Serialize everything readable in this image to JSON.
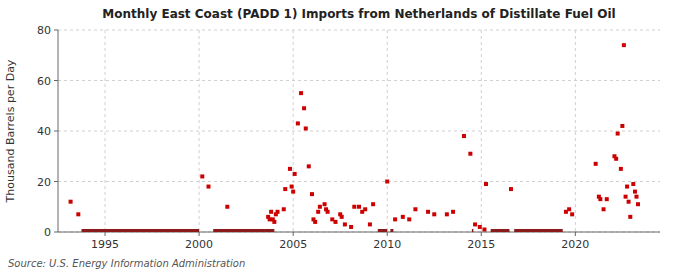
{
  "chart_data": {
    "type": "scatter",
    "title": "Monthly East Coast (PADD 1) Imports from Netherlands of Distillate Fuel Oil",
    "y_label": "Thousand Barrels per Day",
    "source": "Source: U.S. Energy Information Administration",
    "xlim": [
      1992.5,
      2024.5
    ],
    "xticks": [
      1995,
      2000,
      2005,
      2010,
      2015,
      2020
    ],
    "ylim": [
      0,
      80
    ],
    "yticks": [
      0,
      20,
      40,
      60,
      80
    ],
    "grid": true,
    "series": [
      {
        "type": "scatter",
        "color": "#cc0000",
        "marker": "square",
        "x": [
          1993.17,
          1993.58,
          2000.17,
          2000.5,
          2001.5,
          2003.67,
          2003.75,
          2003.83,
          2003.92,
          2004.0,
          2004.08,
          2004.17,
          2004.5,
          2004.58,
          2004.83,
          2004.92,
          2005.0,
          2005.08,
          2005.25,
          2005.42,
          2005.58,
          2005.67,
          2005.83,
          2006.0,
          2006.08,
          2006.17,
          2006.33,
          2006.42,
          2006.67,
          2006.75,
          2006.83,
          2007.08,
          2007.25,
          2007.5,
          2007.58,
          2007.75,
          2008.08,
          2008.25,
          2008.5,
          2008.67,
          2008.83,
          2009.08,
          2009.25,
          2010.0,
          2010.42,
          2010.83,
          2011.17,
          2011.5,
          2012.17,
          2012.5,
          2013.17,
          2013.5,
          2014.08,
          2014.42,
          2014.67,
          2014.92,
          2015.17,
          2015.25,
          2016.58,
          2019.5,
          2019.67,
          2019.83,
          2021.08,
          2021.25,
          2021.33,
          2021.5,
          2021.67,
          2022.08,
          2022.17,
          2022.25,
          2022.42,
          2022.5,
          2022.58,
          2022.67,
          2022.75,
          2022.83,
          2022.92,
          2023.08,
          2023.17,
          2023.25,
          2023.33
        ],
        "values": [
          12,
          7,
          22,
          18,
          10,
          6,
          5,
          8,
          5,
          4,
          7,
          8,
          9,
          17,
          25,
          18,
          16,
          23,
          43,
          55,
          49,
          41,
          26,
          15,
          5,
          4,
          8,
          10,
          11,
          9,
          8,
          5,
          4,
          7,
          6,
          3,
          2,
          10,
          10,
          8,
          9,
          3,
          11,
          20,
          5,
          6,
          5,
          9,
          8,
          7,
          7,
          8,
          38,
          31,
          3,
          2,
          1,
          19,
          17,
          8,
          9,
          7,
          27,
          14,
          13,
          9,
          13,
          30,
          29,
          39,
          25,
          42,
          74,
          14,
          18,
          12,
          6,
          19,
          16,
          14,
          11
        ]
      },
      {
        "type": "segment",
        "color": "#8b1a1a",
        "x_start": [
          1993.75,
          2000.75,
          2003.5,
          2009.5,
          2010.17,
          2014.5,
          2015.5,
          2016.75
        ],
        "x_end": [
          2000.0,
          2003.5,
          2004.0,
          2010.0,
          2010.33,
          2014.58,
          2016.5,
          2019.33
        ],
        "values": [
          0,
          0,
          0,
          0,
          0,
          0,
          0,
          0
        ]
      }
    ]
  }
}
